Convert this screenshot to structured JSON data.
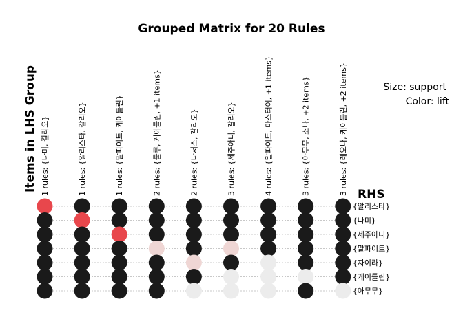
{
  "chart_data": {
    "type": "grouped-matrix",
    "title": "Grouped Matrix for 20 Rules",
    "xlabel": "Items in LHS Group",
    "ylabel": "RHS",
    "legend": {
      "size": "Size: support",
      "color": "Color: lift"
    },
    "columns": [
      "1 rules: {나미, 갈리오}",
      "1 rules: {알리스타, 갈리오}",
      "1 rules: {말파이트, 케이틀린}",
      "2 rules: {룰루, 케이틀린, +1 items}",
      "2 rules: {나서스, 갈리오}",
      "3 rules: {세주아니, 갈리오}",
      "4 rules: {말파이트, 마스터이, +1 items}",
      "3 rules: {아무무, 소나, +2 items}",
      "3 rules: {레오나, 케이틀린, +2 items}"
    ],
    "rows": [
      "{알리스타}",
      "{나미}",
      "{세주아니}",
      "{말파이트}",
      "{자이라}",
      "{케이틀린}",
      "{아무무}"
    ],
    "colors": {
      "red": "#e8474c",
      "pink": "#efd6d4",
      "light": "#ececec",
      "dark": "#1a1a1a",
      "grid": "#c8c8c8"
    },
    "cells": [
      [
        "red",
        "dark",
        "dark",
        "dark",
        "dark",
        "dark",
        "dark"
      ],
      [
        "dark",
        "red",
        "dark",
        "dark",
        "dark",
        "dark",
        "dark"
      ],
      [
        "dark",
        "dark",
        "red",
        "dark",
        "dark",
        "dark",
        "dark"
      ],
      [
        "dark",
        "dark",
        "dark",
        "pink",
        "dark",
        "dark",
        "dark"
      ],
      [
        "dark",
        "dark",
        "dark",
        "dark",
        "pink",
        "dark",
        "light"
      ],
      [
        "dark",
        "dark",
        "dark",
        "pink",
        "dark",
        "light",
        "light"
      ],
      [
        "dark",
        "dark",
        "dark",
        "dark",
        "light",
        "light",
        "light"
      ],
      [
        "dark",
        "dark",
        "dark",
        "dark",
        "dark",
        "light",
        "dark"
      ],
      [
        "dark",
        "dark",
        "dark",
        "dark",
        "dark",
        "dark",
        "light"
      ]
    ]
  }
}
